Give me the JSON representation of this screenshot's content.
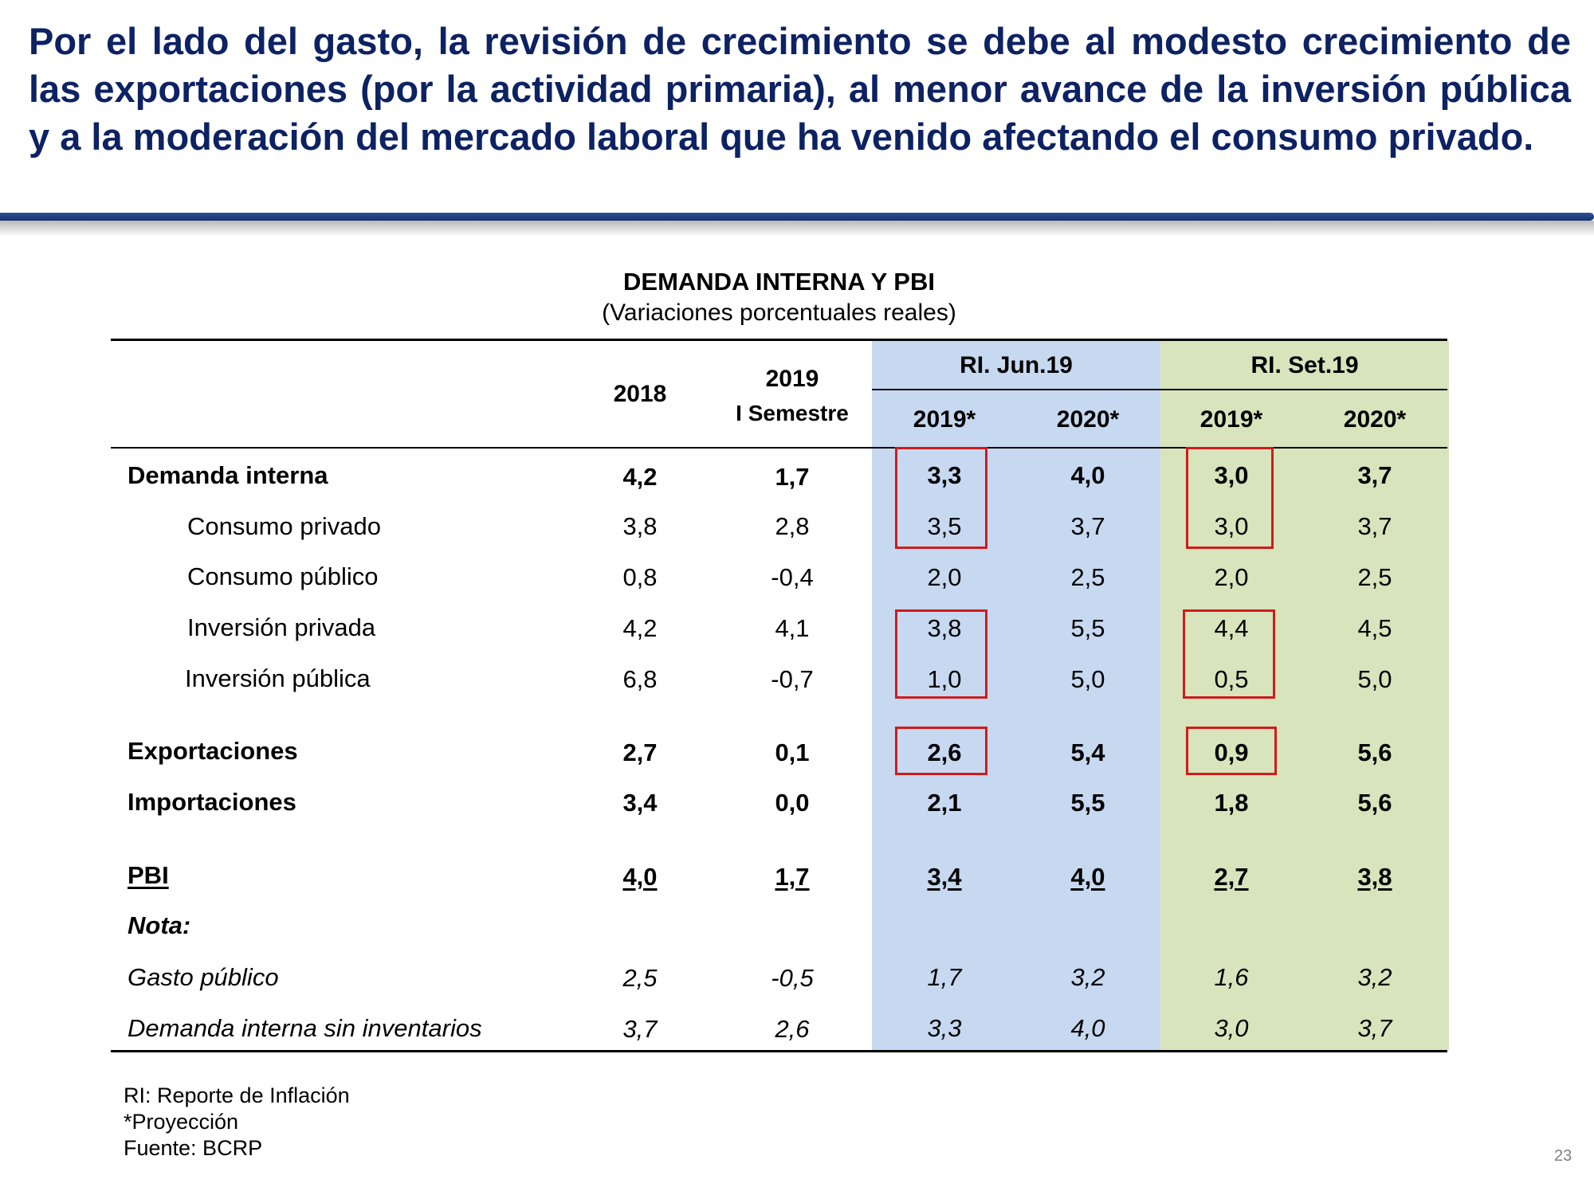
{
  "headline": "Por el lado del gasto, la revisión de crecimiento se debe al modesto crecimiento de las exportaciones (por la actividad primaria), al menor avance de la inversión pública y a la moderación del mercado laboral que ha venido afectando el consumo privado.",
  "table": {
    "title": "DEMANDA INTERNA Y PBI",
    "subtitle": "(Variaciones porcentuales reales)",
    "headers": {
      "col_2018": "2018",
      "col_2019_line1": "2019",
      "col_2019_line2": "I Semestre",
      "group_jun": "RI. Jun.19",
      "group_set": "RI. Set.19",
      "jun_2019": "2019*",
      "jun_2020": "2020*",
      "set_2019": "2019*",
      "set_2020": "2020*"
    },
    "rows": [
      {
        "label": "Demanda interna",
        "values": [
          "4,2",
          "1,7",
          "3,3",
          "4,0",
          "3,0",
          "3,7"
        ]
      },
      {
        "label": "Consumo privado",
        "values": [
          "3,8",
          "2,8",
          "3,5",
          "3,7",
          "3,0",
          "3,7"
        ]
      },
      {
        "label": "Consumo público",
        "values": [
          "0,8",
          "-0,4",
          "2,0",
          "2,5",
          "2,0",
          "2,5"
        ]
      },
      {
        "label": "Inversión privada",
        "values": [
          "4,2",
          "4,1",
          "3,8",
          "5,5",
          "4,4",
          "4,5"
        ]
      },
      {
        "label": "Inversión pública",
        "values": [
          "6,8",
          "-0,7",
          "1,0",
          "5,0",
          "0,5",
          "5,0"
        ]
      },
      {
        "label": "Exportaciones",
        "values": [
          "2,7",
          "0,1",
          "2,6",
          "5,4",
          "0,9",
          "5,6"
        ]
      },
      {
        "label": "Importaciones",
        "values": [
          "3,4",
          "0,0",
          "2,1",
          "5,5",
          "1,8",
          "5,6"
        ]
      },
      {
        "label": "PBI",
        "values": [
          "4,0",
          "1,7",
          "3,4",
          "4,0",
          "2,7",
          "3,8"
        ]
      },
      {
        "label": "Nota:",
        "values": []
      },
      {
        "label": "Gasto público",
        "values": [
          "2,5",
          "-0,5",
          "1,7",
          "3,2",
          "1,6",
          "3,2"
        ]
      },
      {
        "label": "Demanda interna sin inventarios",
        "values": [
          "3,7",
          "2,6",
          "3,3",
          "4,0",
          "3,0",
          "3,7"
        ]
      }
    ]
  },
  "footnotes": [
    "RI: Reporte de Inflación",
    "*Proyección",
    "Fuente: BCRP"
  ],
  "page_number": "23",
  "colors": {
    "headline": "#0d2263",
    "jun_shade": "#c6d9f1",
    "set_shade": "#d8e4bc",
    "highlight_box": "#d01b1b"
  }
}
